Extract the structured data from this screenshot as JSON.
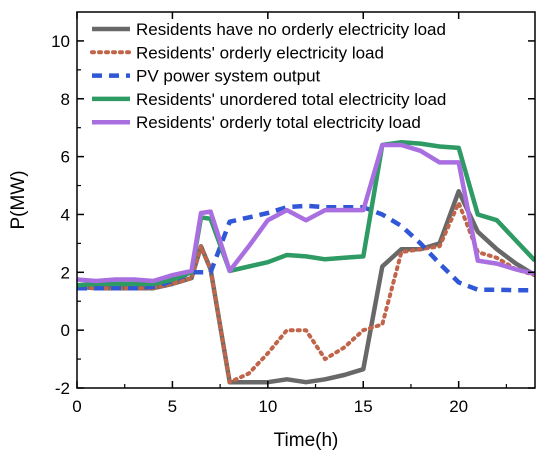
{
  "chart_data": {
    "type": "line",
    "title": "",
    "xlabel": "Time(h)",
    "ylabel": "P(MW)",
    "xlim": [
      0,
      24
    ],
    "ylim": [
      -2,
      11
    ],
    "xticks": [
      0,
      5,
      10,
      15,
      20
    ],
    "yticks": [
      -2,
      0,
      2,
      4,
      6,
      8,
      10
    ],
    "grid": false,
    "legend_position": "top-right",
    "series": [
      {
        "name": "Residents have no orderly electricity load",
        "color": "#686868",
        "style": "solid",
        "x": [
          0,
          1,
          2,
          3,
          4,
          5,
          6,
          6.5,
          7,
          8,
          9,
          10,
          11,
          12,
          13,
          14,
          15,
          16,
          17,
          18,
          19,
          20,
          21,
          22,
          23,
          24
        ],
        "y": [
          1.5,
          1.45,
          1.45,
          1.45,
          1.45,
          1.6,
          1.8,
          2.9,
          2.1,
          -1.8,
          -1.8,
          -1.8,
          -1.7,
          -1.8,
          -1.7,
          -1.55,
          -1.35,
          2.2,
          2.8,
          2.8,
          3.0,
          4.8,
          3.4,
          2.8,
          2.3,
          1.9
        ]
      },
      {
        "name": "Residents' orderly electricity load",
        "color": "#c0654a",
        "style": "dotted",
        "x": [
          0,
          1,
          2,
          3,
          4,
          5,
          6,
          6.5,
          7,
          8,
          9,
          10,
          11,
          12,
          13,
          14,
          15,
          16,
          17,
          18,
          19,
          20,
          21,
          22,
          23,
          24
        ],
        "y": [
          1.5,
          1.45,
          1.45,
          1.45,
          1.45,
          1.6,
          1.8,
          2.9,
          2.1,
          -1.8,
          -1.5,
          -0.8,
          0.0,
          0.0,
          -1.0,
          -0.6,
          0.0,
          0.2,
          2.7,
          2.8,
          2.9,
          4.4,
          2.7,
          2.5,
          2.1,
          1.9
        ]
      },
      {
        "name": "PV power system output",
        "color": "#2f57d6",
        "style": "dashed",
        "x": [
          0,
          1,
          2,
          3,
          4,
          5,
          6,
          7,
          8,
          9,
          10,
          11,
          12,
          13,
          14,
          15,
          16,
          17,
          18,
          19,
          20,
          21,
          22,
          23,
          24
        ],
        "y": [
          1.45,
          1.45,
          1.45,
          1.45,
          1.5,
          1.7,
          2.0,
          2.0,
          3.75,
          3.9,
          4.05,
          4.25,
          4.3,
          4.25,
          4.25,
          4.25,
          4.0,
          3.6,
          3.0,
          2.3,
          1.65,
          1.4,
          1.4,
          1.38,
          1.38
        ]
      },
      {
        "name": "Residents' unordered total electricity load",
        "color": "#2e9a64",
        "style": "solid",
        "x": [
          0,
          1,
          2,
          3,
          4,
          5,
          6,
          6.5,
          7,
          8,
          9,
          10,
          11,
          12,
          13,
          14,
          15,
          16,
          17,
          18,
          19,
          20,
          21,
          22,
          23,
          24
        ],
        "y": [
          1.55,
          1.6,
          1.6,
          1.6,
          1.6,
          1.75,
          2.0,
          3.9,
          3.85,
          2.05,
          2.2,
          2.35,
          2.6,
          2.55,
          2.45,
          2.5,
          2.55,
          6.4,
          6.5,
          6.45,
          6.35,
          6.3,
          4.0,
          3.8,
          3.1,
          2.4
        ]
      },
      {
        "name": "Residents' orderly total electricity load",
        "color": "#a96fe0",
        "style": "solid",
        "x": [
          0,
          1,
          2,
          3,
          4,
          5,
          6,
          6.5,
          7,
          8,
          9,
          10,
          11,
          12,
          13,
          14,
          15,
          16,
          17,
          18,
          19,
          20,
          21,
          22,
          23,
          24
        ],
        "y": [
          1.75,
          1.7,
          1.75,
          1.75,
          1.7,
          1.9,
          2.05,
          4.05,
          4.1,
          2.05,
          2.9,
          3.8,
          4.15,
          3.8,
          4.15,
          4.15,
          4.15,
          6.4,
          6.4,
          6.2,
          5.8,
          5.8,
          2.4,
          2.3,
          2.1,
          1.95
        ]
      }
    ]
  }
}
